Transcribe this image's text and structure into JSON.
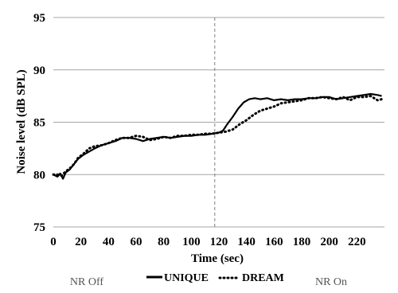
{
  "chart_data": {
    "type": "line",
    "xlabel": "Time (sec)",
    "ylabel": "Noise level (dB SPL)",
    "xlim": [
      0,
      240
    ],
    "ylim": [
      75,
      95
    ],
    "xticks": [
      0,
      20,
      40,
      60,
      80,
      100,
      120,
      140,
      160,
      180,
      200,
      220
    ],
    "yticks": [
      75,
      80,
      85,
      90,
      95
    ],
    "grid": "horizontal",
    "vline": {
      "x": 117,
      "style": "dashed"
    },
    "region_labels": {
      "left": "NR Off",
      "right": "NR On"
    },
    "legend_position": "bottom-center",
    "series": [
      {
        "name": "UNIQUE",
        "style": "solid",
        "color": "#000000",
        "x": [
          0,
          3,
          5,
          7,
          9,
          12,
          15,
          18,
          22,
          26,
          30,
          35,
          40,
          45,
          50,
          55,
          60,
          65,
          70,
          75,
          80,
          85,
          90,
          95,
          100,
          105,
          110,
          115,
          120,
          123,
          126,
          130,
          134,
          138,
          142,
          146,
          150,
          155,
          160,
          165,
          170,
          175,
          180,
          185,
          190,
          195,
          200,
          205,
          210,
          215,
          220,
          225,
          230,
          235,
          238
        ],
        "values": [
          80.0,
          79.8,
          80.1,
          79.6,
          80.2,
          80.5,
          81.0,
          81.5,
          81.9,
          82.2,
          82.5,
          82.8,
          83.0,
          83.2,
          83.5,
          83.5,
          83.4,
          83.2,
          83.4,
          83.5,
          83.6,
          83.5,
          83.6,
          83.7,
          83.7,
          83.8,
          83.8,
          83.9,
          84.0,
          84.2,
          84.8,
          85.5,
          86.3,
          86.9,
          87.2,
          87.3,
          87.2,
          87.3,
          87.1,
          87.2,
          87.1,
          87.2,
          87.2,
          87.3,
          87.3,
          87.4,
          87.4,
          87.2,
          87.3,
          87.4,
          87.5,
          87.6,
          87.7,
          87.6,
          87.5
        ]
      },
      {
        "name": "DREAM",
        "style": "dotted",
        "color": "#000000",
        "x": [
          0,
          3,
          6,
          9,
          12,
          15,
          18,
          22,
          26,
          30,
          35,
          40,
          45,
          50,
          55,
          60,
          65,
          70,
          75,
          80,
          85,
          90,
          95,
          100,
          105,
          110,
          115,
          120,
          125,
          130,
          135,
          140,
          145,
          150,
          155,
          160,
          165,
          170,
          175,
          180,
          185,
          190,
          195,
          200,
          205,
          210,
          215,
          220,
          225,
          230,
          235,
          238
        ],
        "values": [
          80.0,
          80.0,
          79.9,
          80.3,
          80.6,
          81.0,
          81.6,
          82.0,
          82.5,
          82.7,
          82.8,
          83.0,
          83.3,
          83.5,
          83.5,
          83.7,
          83.6,
          83.3,
          83.4,
          83.6,
          83.5,
          83.7,
          83.7,
          83.8,
          83.8,
          83.9,
          83.9,
          84.0,
          84.1,
          84.3,
          84.8,
          85.2,
          85.7,
          86.1,
          86.3,
          86.5,
          86.8,
          86.9,
          87.0,
          87.1,
          87.3,
          87.3,
          87.4,
          87.3,
          87.2,
          87.4,
          87.1,
          87.4,
          87.4,
          87.5,
          87.1,
          87.2
        ]
      }
    ]
  }
}
